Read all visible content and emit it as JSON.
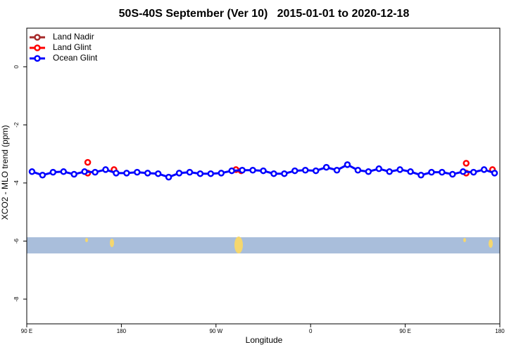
{
  "chart_data": {
    "type": "line",
    "title": "50S-40S September (Ver 10)   2015-01-01 to 2020-12-18",
    "x_label": "Longitude",
    "y_label": "XCO2 - MLO trend (ppm)",
    "xlim": [
      90,
      540
    ],
    "xticks": [
      {
        "value": 90,
        "label": "90 E"
      },
      {
        "value": 180,
        "label": "180"
      },
      {
        "value": 270,
        "label": "90 W"
      },
      {
        "value": 360,
        "label": "0"
      },
      {
        "value": 450,
        "label": "90 E"
      },
      {
        "value": 540,
        "label": "180"
      }
    ],
    "ylim": [
      -8.85,
      1.33
    ],
    "yticks": [
      0,
      -2,
      -4,
      -6,
      -8
    ],
    "legend": "top-left",
    "series": [
      {
        "name": "Land Nadir",
        "color": "#a52a2a",
        "line": true,
        "x": [],
        "values": []
      },
      {
        "name": "Land Glint",
        "color": "#ff0000",
        "line": false,
        "x": [
          148,
          148,
          173,
          289,
          294,
          508,
          508,
          533
        ],
        "values": [
          -3.29,
          -3.66,
          -3.54,
          -3.54,
          -3.58,
          -3.32,
          -3.66,
          -3.54
        ]
      },
      {
        "name": "Ocean Glint",
        "color": "#0000ff",
        "line": true,
        "x": [
          95,
          105,
          115,
          125,
          135,
          145,
          155,
          165,
          175,
          185,
          195,
          205,
          215,
          225,
          235,
          245,
          255,
          265,
          275,
          285,
          295,
          305,
          315,
          325,
          335,
          345,
          355,
          365,
          375,
          385,
          395,
          405,
          415,
          425,
          435,
          445,
          455,
          465,
          475,
          485,
          495,
          505,
          515,
          525,
          535
        ],
        "values": [
          -3.61,
          -3.73,
          -3.63,
          -3.61,
          -3.7,
          -3.61,
          -3.63,
          -3.54,
          -3.66,
          -3.66,
          -3.63,
          -3.66,
          -3.68,
          -3.8,
          -3.66,
          -3.63,
          -3.68,
          -3.68,
          -3.66,
          -3.58,
          -3.56,
          -3.56,
          -3.58,
          -3.68,
          -3.68,
          -3.58,
          -3.56,
          -3.58,
          -3.46,
          -3.56,
          -3.37,
          -3.56,
          -3.61,
          -3.51,
          -3.61,
          -3.54,
          -3.61,
          -3.73,
          -3.63,
          -3.63,
          -3.7,
          -3.61,
          -3.63,
          -3.54,
          -3.66
        ]
      }
    ]
  }
}
